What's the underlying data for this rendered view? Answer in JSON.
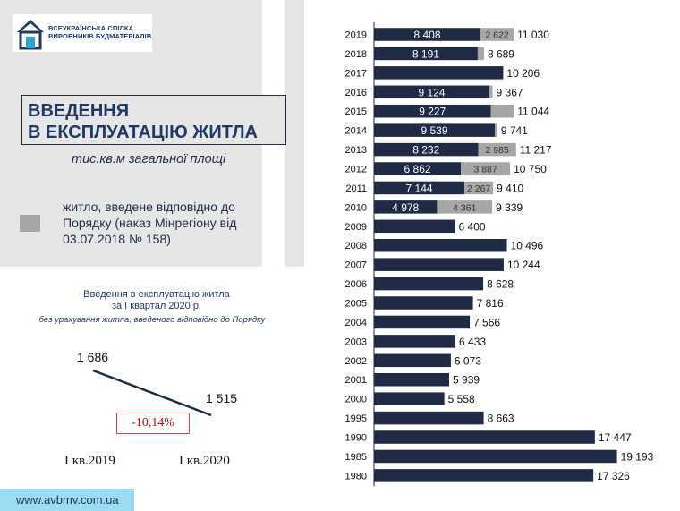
{
  "logo": {
    "line1": "ВСЕУКРАЇНСЬКА СПІЛКА",
    "line2": "ВИРОБНИКІВ БУДМАТЕРІАЛІВ"
  },
  "title": {
    "line1": "ВВЕДЕННЯ",
    "line2": "В ЕКСПЛУАТАЦІЮ ЖИТЛА"
  },
  "units": "тис.кв.м загальної площі",
  "legend": {
    "label": "житло, введене відповідно до Порядку (наказ Мінрегіону від 03.07.2018 № 158)"
  },
  "quarter": {
    "title_line1": "Введення в експлуатацію житла",
    "title_line2": "за І квартал 2020 р.",
    "subtitle": "без урахування житла, введеного відповідно до Порядку",
    "value1": "1 686",
    "value2": "1 515",
    "change": "-10,14%",
    "cat1": "І кв.2019",
    "cat2": "І кв.2020"
  },
  "footer": {
    "url": "www.avbmv.com.ua"
  },
  "chart_data": {
    "type": "bar",
    "orientation": "horizontal",
    "stacked": true,
    "x_max": 20000,
    "colors": {
      "base": "#1f2a44",
      "porядок": "#a6a6a6"
    },
    "categories": [
      "2019",
      "2018",
      "2017",
      "2016",
      "2015",
      "2014",
      "2013",
      "2012",
      "2011",
      "2010",
      "2009",
      "2008",
      "2007",
      "2006",
      "2005",
      "2004",
      "2003",
      "2002",
      "2001",
      "2000",
      "1995",
      "1990",
      "1985",
      "1980"
    ],
    "series": [
      {
        "values": [
          8408,
          8191,
          10206,
          9124,
          9227,
          9539,
          8232,
          6862,
          7144,
          4978,
          6400,
          10496,
          10244,
          8628,
          7816,
          7566,
          6433,
          6073,
          5939,
          5558,
          8663,
          17447,
          19193,
          17326
        ]
      },
      {
        "values": [
          2622,
          498,
          0,
          243,
          1817,
          202,
          2985,
          3887,
          2267,
          4361,
          0,
          0,
          0,
          0,
          0,
          0,
          0,
          0,
          0,
          0,
          0,
          0,
          0,
          0
        ]
      }
    ],
    "inner_labels": [
      "8 408",
      "8 191",
      "",
      "9 124",
      "9 227",
      "9 539",
      "8 232",
      "6 862",
      "7 144",
      "4 978",
      "",
      "",
      "",
      "",
      "",
      "",
      "",
      "",
      "",
      "",
      "",
      "",
      "",
      ""
    ],
    "grey_labels": [
      "2 622",
      "",
      "",
      "",
      "",
      "",
      "2 985",
      "3 887",
      "2 267",
      "4 361",
      "",
      "",
      "",
      "",
      "",
      "",
      "",
      "",
      "",
      "",
      "",
      "",
      "",
      ""
    ],
    "total_labels": [
      "11 030",
      "8 689",
      "10 206",
      "9 367",
      "11 044",
      "9 741",
      "11 217",
      "10 750",
      "9 410",
      "9 339",
      "6 400",
      "10 496",
      "10 244",
      "8 628",
      "7 816",
      "7 566",
      "6 433",
      "6 073",
      "5 939",
      "5 558",
      "8 663",
      "17 447",
      "19 193",
      "17 326"
    ]
  }
}
